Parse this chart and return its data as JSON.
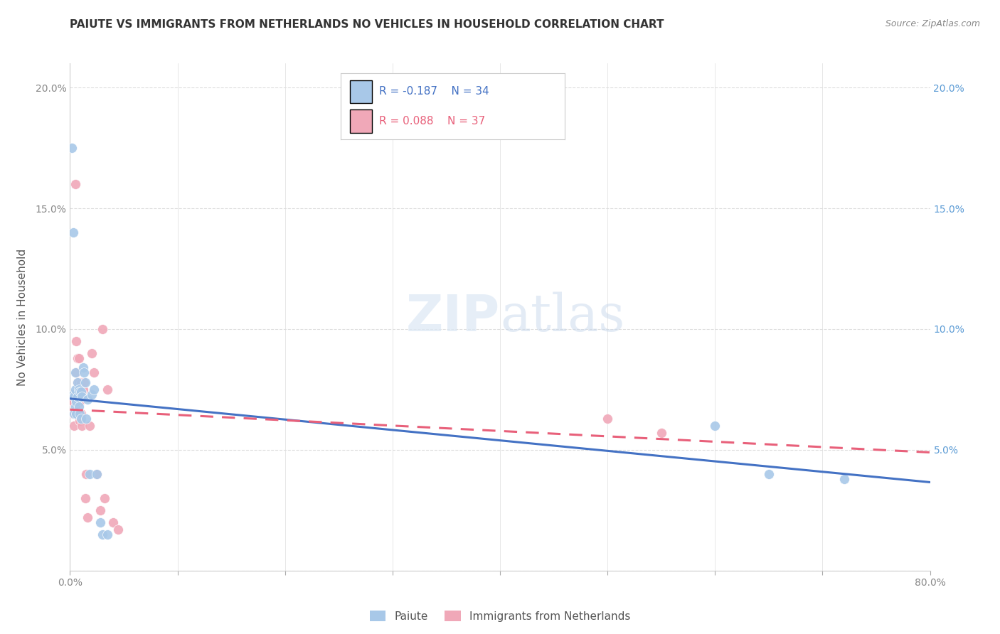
{
  "title": "PAIUTE VS IMMIGRANTS FROM NETHERLANDS NO VEHICLES IN HOUSEHOLD CORRELATION CHART",
  "source": "Source: ZipAtlas.com",
  "ylabel": "No Vehicles in Household",
  "xlim": [
    0.0,
    0.8
  ],
  "ylim": [
    0.0,
    0.21
  ],
  "xticks": [
    0.0,
    0.1,
    0.2,
    0.3,
    0.4,
    0.5,
    0.6,
    0.7,
    0.8
  ],
  "yticks": [
    0.0,
    0.05,
    0.1,
    0.15,
    0.2
  ],
  "xtick_labels": [
    "0.0%",
    "",
    "",
    "",
    "",
    "",
    "",
    "",
    "80.0%"
  ],
  "ytick_labels_left": [
    "",
    "5.0%",
    "10.0%",
    "15.0%",
    "20.0%"
  ],
  "ytick_labels_right": [
    "",
    "5.0%",
    "10.0%",
    "15.0%",
    "20.0%"
  ],
  "paiute_color": "#A8C8E8",
  "netherlands_color": "#F0A8B8",
  "paiute_line_color": "#4472C4",
  "netherlands_line_color": "#E8607A",
  "legend_r_paiute": "R = -0.187",
  "legend_n_paiute": "N = 34",
  "legend_r_netherlands": "R = 0.088",
  "legend_n_netherlands": "N = 37",
  "paiute_x": [
    0.002,
    0.003,
    0.003,
    0.004,
    0.004,
    0.005,
    0.005,
    0.005,
    0.006,
    0.006,
    0.007,
    0.007,
    0.008,
    0.008,
    0.009,
    0.009,
    0.01,
    0.01,
    0.011,
    0.012,
    0.013,
    0.014,
    0.015,
    0.016,
    0.018,
    0.02,
    0.022,
    0.025,
    0.028,
    0.03,
    0.035,
    0.6,
    0.65,
    0.72
  ],
  "paiute_y": [
    0.175,
    0.14,
    0.073,
    0.072,
    0.065,
    0.082,
    0.075,
    0.068,
    0.07,
    0.065,
    0.078,
    0.072,
    0.075,
    0.068,
    0.074,
    0.065,
    0.074,
    0.063,
    0.072,
    0.084,
    0.082,
    0.078,
    0.063,
    0.071,
    0.04,
    0.073,
    0.075,
    0.04,
    0.02,
    0.015,
    0.015,
    0.06,
    0.04,
    0.038
  ],
  "netherlands_x": [
    0.001,
    0.002,
    0.003,
    0.003,
    0.004,
    0.004,
    0.005,
    0.005,
    0.006,
    0.006,
    0.007,
    0.007,
    0.007,
    0.008,
    0.008,
    0.009,
    0.009,
    0.01,
    0.01,
    0.011,
    0.012,
    0.013,
    0.014,
    0.015,
    0.016,
    0.018,
    0.02,
    0.022,
    0.025,
    0.028,
    0.03,
    0.032,
    0.035,
    0.04,
    0.045,
    0.5,
    0.55
  ],
  "netherlands_y": [
    0.07,
    0.065,
    0.07,
    0.065,
    0.065,
    0.06,
    0.16,
    0.065,
    0.095,
    0.082,
    0.088,
    0.078,
    0.065,
    0.088,
    0.078,
    0.07,
    0.062,
    0.078,
    0.065,
    0.06,
    0.075,
    0.078,
    0.03,
    0.04,
    0.022,
    0.06,
    0.09,
    0.082,
    0.04,
    0.025,
    0.1,
    0.03,
    0.075,
    0.02,
    0.017,
    0.063,
    0.057
  ],
  "watermark_zip": "ZIP",
  "watermark_atlas": "atlas",
  "background_color": "#FFFFFF"
}
